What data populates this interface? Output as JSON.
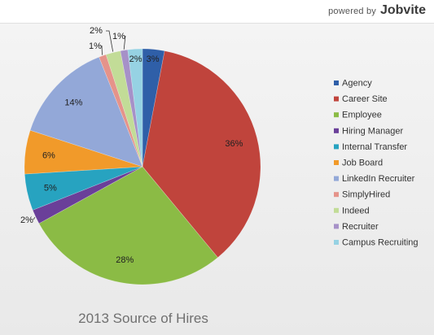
{
  "brand": {
    "prefix": "powered by",
    "logo": "Jobvite"
  },
  "chart_data": {
    "type": "pie",
    "title": "2013 Source of Hires",
    "legend_position": "right",
    "unit": "%",
    "slices": [
      {
        "name": "Agency",
        "value": 3,
        "label": "3%",
        "color": "#2f5fa8"
      },
      {
        "name": "Career Site",
        "value": 36,
        "label": "36%",
        "color": "#c0443c"
      },
      {
        "name": "Employee",
        "value": 28,
        "label": "28%",
        "color": "#8bbb45"
      },
      {
        "name": "Hiring Manager",
        "value": 2,
        "label": "2%",
        "color": "#6a3f99"
      },
      {
        "name": "Internal Transfer",
        "value": 5,
        "label": "5%",
        "color": "#27a3c0"
      },
      {
        "name": "Job Board",
        "value": 6,
        "label": "6%",
        "color": "#f19a2a"
      },
      {
        "name": "LinkedIn Recruiter",
        "value": 14,
        "label": "14%",
        "color": "#93a8d8"
      },
      {
        "name": "SimplyHired",
        "value": 1,
        "label": "1%",
        "color": "#e5938a"
      },
      {
        "name": "Indeed",
        "value": 2,
        "label": "2%",
        "color": "#c2dc97"
      },
      {
        "name": "Recruiter",
        "value": 1,
        "label": "1%",
        "color": "#a691c8"
      },
      {
        "name": "Campus Recruiting",
        "value": 2,
        "label": "2%",
        "color": "#96d2e3"
      }
    ]
  }
}
